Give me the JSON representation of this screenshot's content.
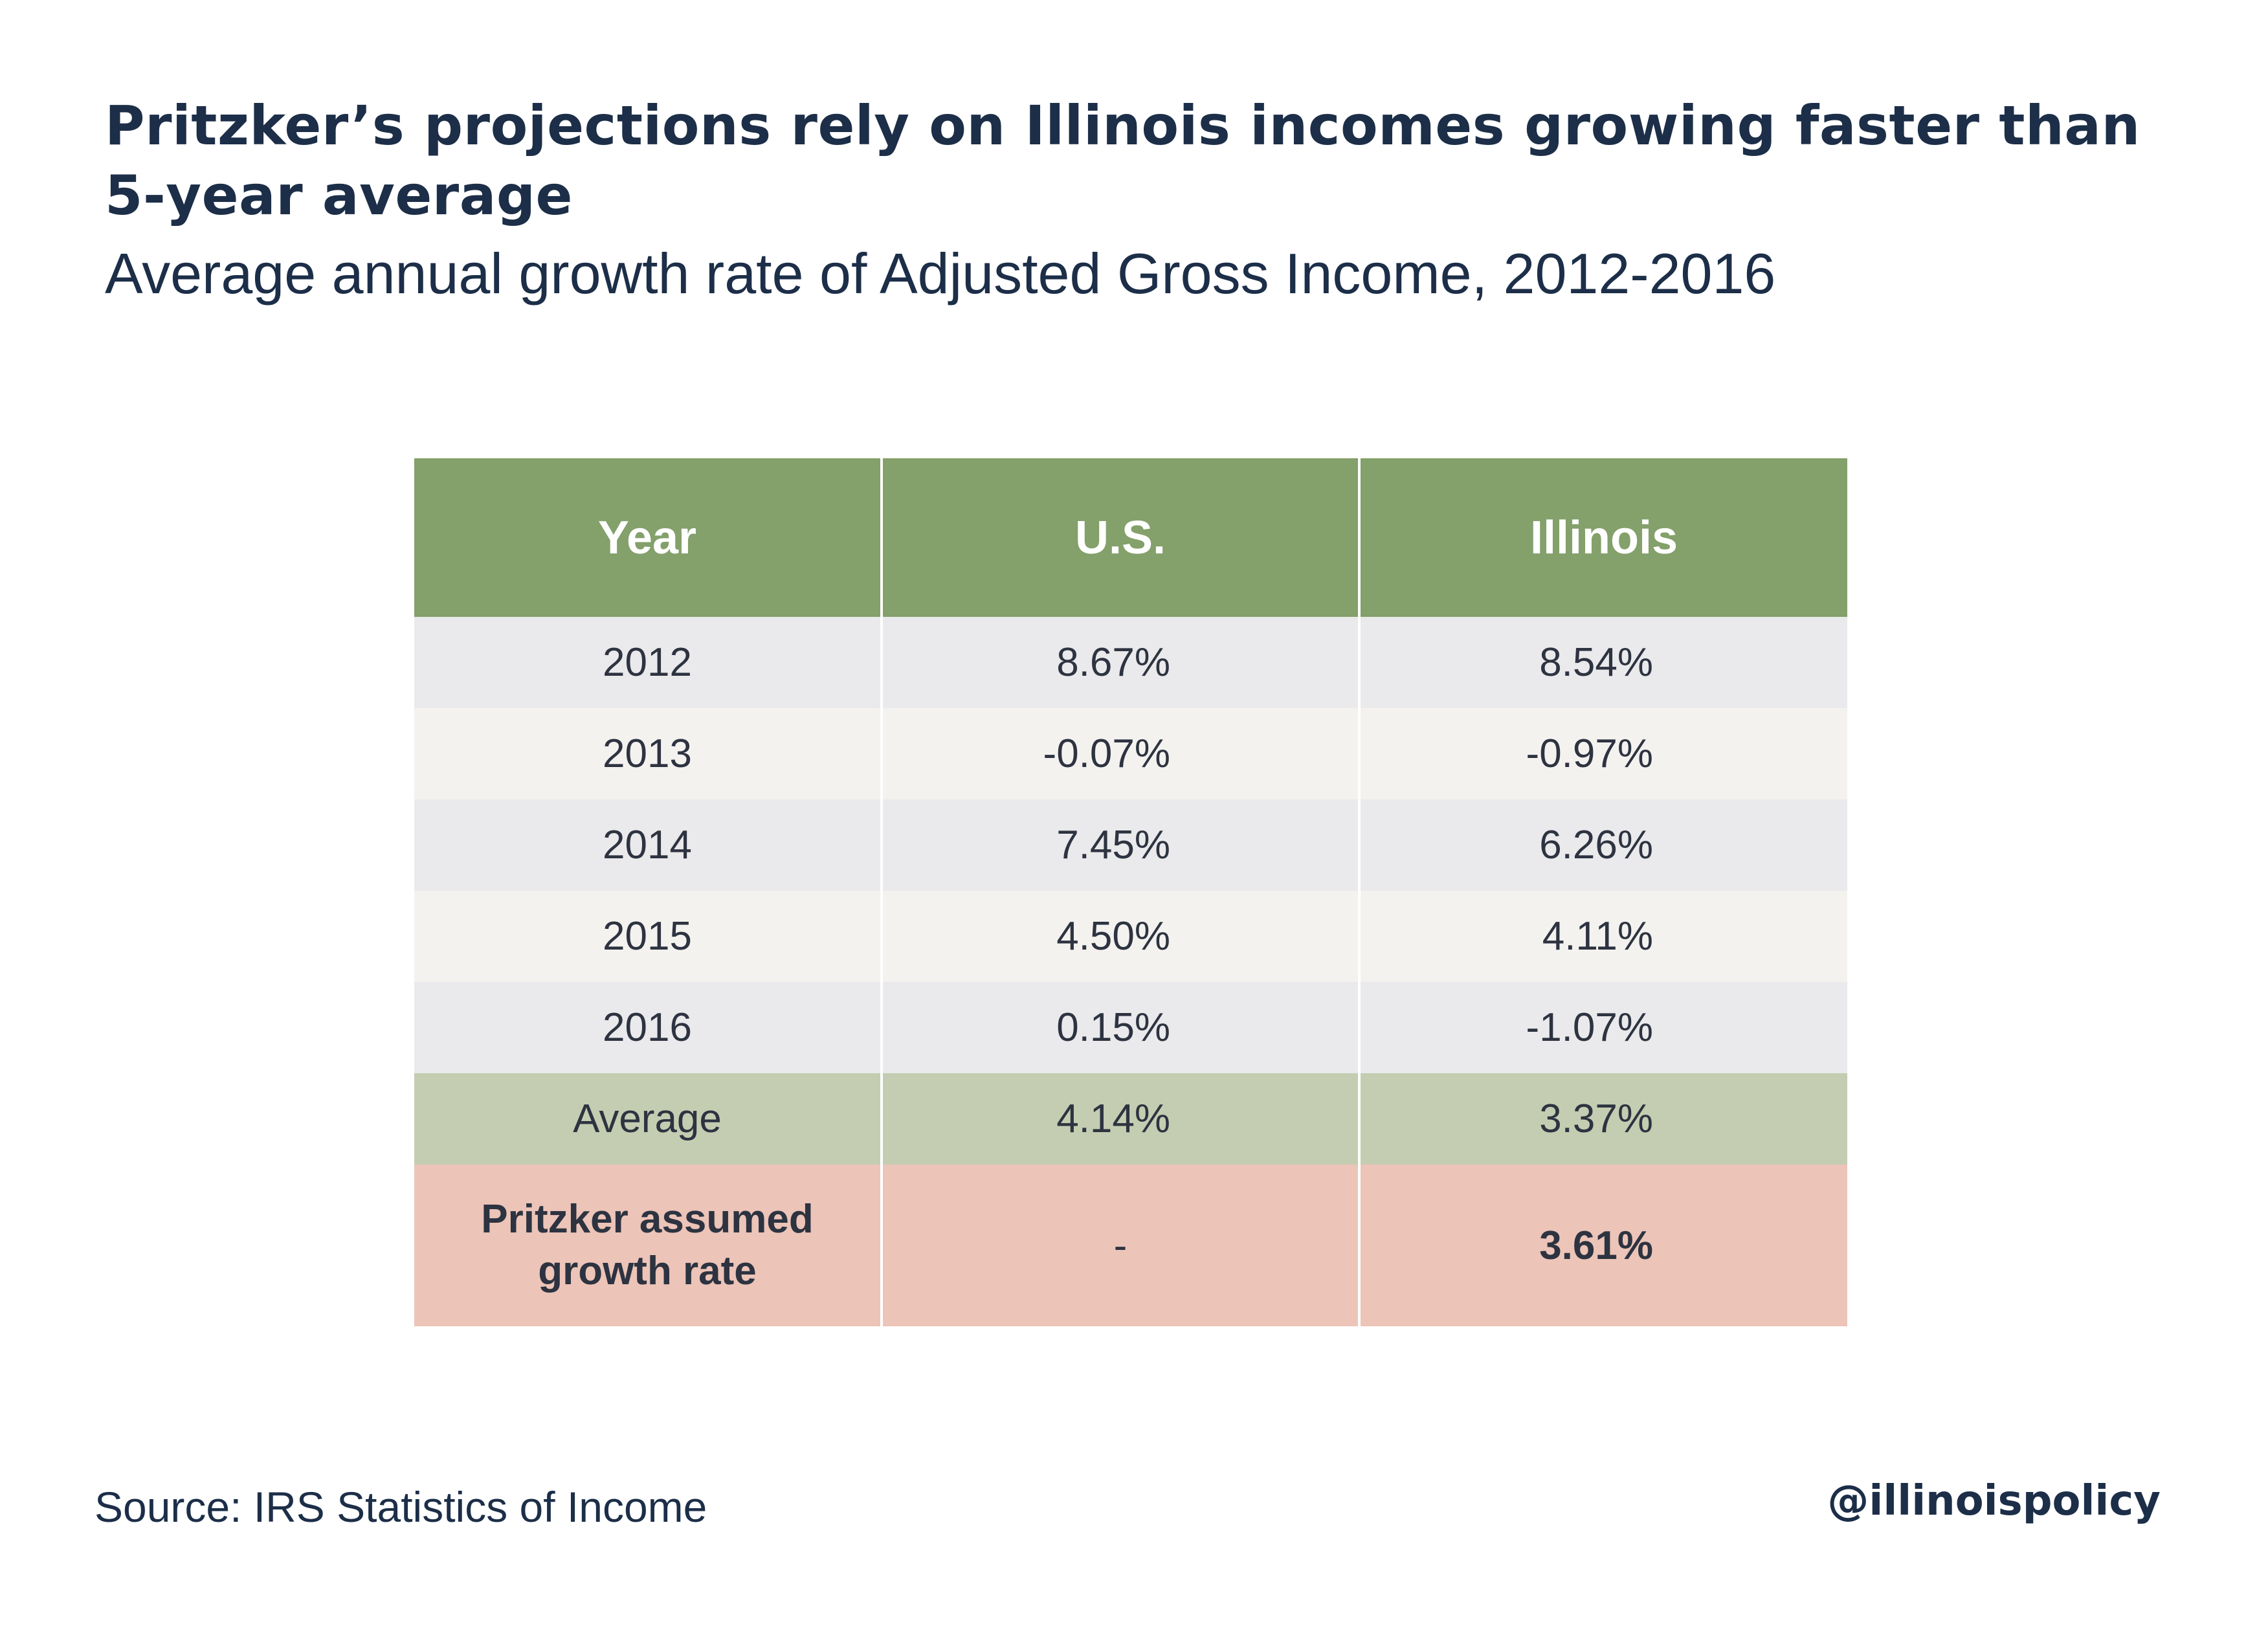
{
  "chart_data": {
    "type": "table",
    "title": "Pritzker’s projections rely on Illinois incomes growing faster than 5-year average",
    "subtitle": "Average annual growth rate of Adjusted Gross Income, 2012-2016",
    "columns": [
      "Year",
      "U.S.",
      "Illinois"
    ],
    "rows": [
      {
        "year": "2012",
        "us": "8.67%",
        "illinois": "8.54%"
      },
      {
        "year": "2013",
        "us": "-0.07%",
        "illinois": "-0.97%"
      },
      {
        "year": "2014",
        "us": "7.45%",
        "illinois": "6.26%"
      },
      {
        "year": "2015",
        "us": "4.50%",
        "illinois": "4.11%"
      },
      {
        "year": "2016",
        "us": "0.15%",
        "illinois": "-1.07%"
      }
    ],
    "average": {
      "label": "Average",
      "us": "4.14%",
      "illinois": "3.37%"
    },
    "assumed": {
      "label_line1": "Pritzker assumed",
      "label_line2": "growth rate",
      "us": "-",
      "illinois": "3.61%"
    }
  },
  "footer": {
    "source": "Source: IRS Statistics of Income",
    "handle": "@illinoispolicy"
  },
  "colors": {
    "header_green": "#84a06b",
    "average_green": "#c4cdb1",
    "assumed_pink": "#ecc4b8",
    "row_gray": "#eae9eb",
    "row_cream": "#f4f2ef",
    "text_navy": "#1c2e48"
  }
}
